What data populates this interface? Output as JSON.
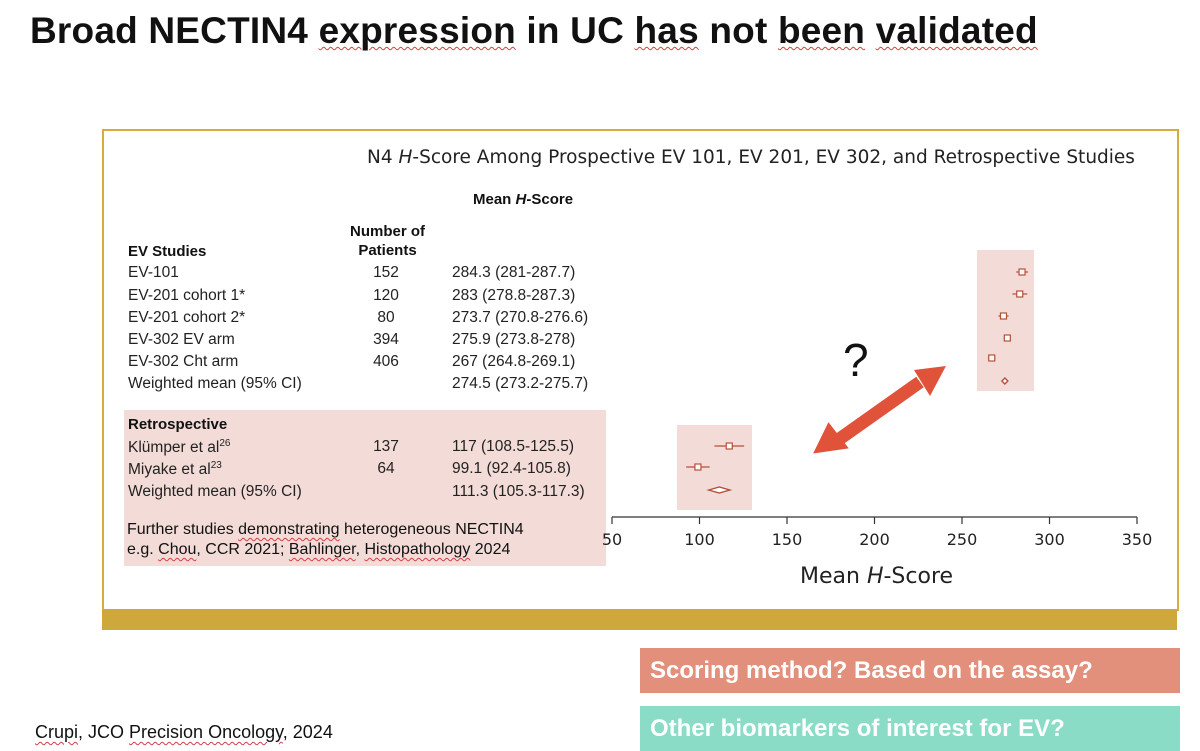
{
  "slide": {
    "title_parts": [
      {
        "text": "Broad NECTIN4 ",
        "squiggle": false
      },
      {
        "text": "expression",
        "squiggle": true
      },
      {
        "text": " in UC ",
        "squiggle": false
      },
      {
        "text": "has",
        "squiggle": true
      },
      {
        "text": " not ",
        "squiggle": false
      },
      {
        "text": "been",
        "squiggle": true
      },
      {
        "text": " ",
        "squiggle": false
      },
      {
        "text": "validated",
        "squiggle": true
      }
    ],
    "question_mark": "?",
    "citation_parts": [
      {
        "text": "Crupi",
        "squiggle": true
      },
      {
        "text": ", JCO ",
        "squiggle": false
      },
      {
        "text": "Precision Oncology",
        "squiggle": true
      },
      {
        "text": ", 2024",
        "squiggle": false
      }
    ],
    "callouts": [
      {
        "text": "Scoring method? Based on the assay?",
        "color": "#e2907c"
      },
      {
        "text": "Other biomarkers of interest for EV?",
        "color": "#8bdcc6"
      }
    ],
    "note_line1_parts": [
      {
        "text": "Further studies ",
        "squiggle": false
      },
      {
        "text": "demonstrating",
        "squiggle": true
      },
      {
        "text": " heterogeneous NECTIN4",
        "squiggle": false
      }
    ],
    "note_line2_parts": [
      {
        "text": "e.g. ",
        "squiggle": false
      },
      {
        "text": "Chou",
        "squiggle": true
      },
      {
        "text": ", CCR 2021; ",
        "squiggle": false
      },
      {
        "text": "Bahlinger",
        "squiggle": true
      },
      {
        "text": ", ",
        "squiggle": false
      },
      {
        "text": "Histopathology",
        "squiggle": true
      },
      {
        "text": " 2024",
        "squiggle": false
      }
    ]
  },
  "figure": {
    "title_pre": "N4 ",
    "title_italic": "H",
    "title_post": "-Score Among Prospective EV 101, EV 201, EV 302, and Retrospective Studies",
    "mean_header_pre": "Mean ",
    "mean_header_italic": "H",
    "mean_header_post": "-Score",
    "n_header_line1": "Number of",
    "n_header_line2": "Patients",
    "ev_header": "EV Studies",
    "retro_header": "Retrospective",
    "axis_title_pre": "Mean ",
    "axis_title_italic": "H",
    "axis_title_post": "-Score"
  },
  "chart_data": {
    "type": "forest",
    "xlabel": "Mean H-Score",
    "xlim": [
      50,
      350
    ],
    "xticks": [
      50,
      100,
      150,
      200,
      250,
      300,
      350
    ],
    "highlight_color": "#f3dcd7",
    "marker_color": "#b5503a",
    "arrow_color": "#e0533a",
    "groups": [
      {
        "name": "EV Studies",
        "rows": [
          {
            "label": "EV-101",
            "sup": "",
            "n": "152",
            "mean_text": "284.3 (281-287.7)",
            "mean": 284.3,
            "lo": 281,
            "hi": 287.7,
            "marker": "square"
          },
          {
            "label": "EV-201 cohort 1*",
            "sup": "",
            "n": "120",
            "mean_text": "283 (278.8-287.3)",
            "mean": 283,
            "lo": 278.8,
            "hi": 287.3,
            "marker": "square"
          },
          {
            "label": "EV-201 cohort 2*",
            "sup": "",
            "n": "80",
            "mean_text": "273.7 (270.8-276.6)",
            "mean": 273.7,
            "lo": 270.8,
            "hi": 276.6,
            "marker": "square"
          },
          {
            "label": "EV-302 EV arm",
            "sup": "",
            "n": "394",
            "mean_text": "275.9 (273.8-278)",
            "mean": 275.9,
            "lo": 273.8,
            "hi": 278,
            "marker": "square"
          },
          {
            "label": "EV-302 Cht arm",
            "sup": "",
            "n": "406",
            "mean_text": "267 (264.8-269.1)",
            "mean": 267,
            "lo": 264.8,
            "hi": 269.1,
            "marker": "square"
          },
          {
            "label": "Weighted mean (95% CI)",
            "sup": "",
            "n": "",
            "mean_text": "274.5 (273.2-275.7)",
            "mean": 274.5,
            "lo": 273.2,
            "hi": 275.7,
            "marker": "diamond"
          }
        ]
      },
      {
        "name": "Retrospective",
        "rows": [
          {
            "label": "Klümper et al",
            "sup": "26",
            "n": "137",
            "mean_text": "117 (108.5-125.5)",
            "mean": 117,
            "lo": 108.5,
            "hi": 125.5,
            "marker": "square"
          },
          {
            "label": "Miyake et al",
            "sup": "23",
            "n": "64",
            "mean_text": "99.1 (92.4-105.8)",
            "mean": 99.1,
            "lo": 92.4,
            "hi": 105.8,
            "marker": "square"
          },
          {
            "label": "Weighted mean (95% CI)",
            "sup": "",
            "n": "",
            "mean_text": "111.3 (105.3-117.3)",
            "mean": 111.3,
            "lo": 105.3,
            "hi": 117.3,
            "marker": "diamond"
          }
        ]
      }
    ]
  }
}
